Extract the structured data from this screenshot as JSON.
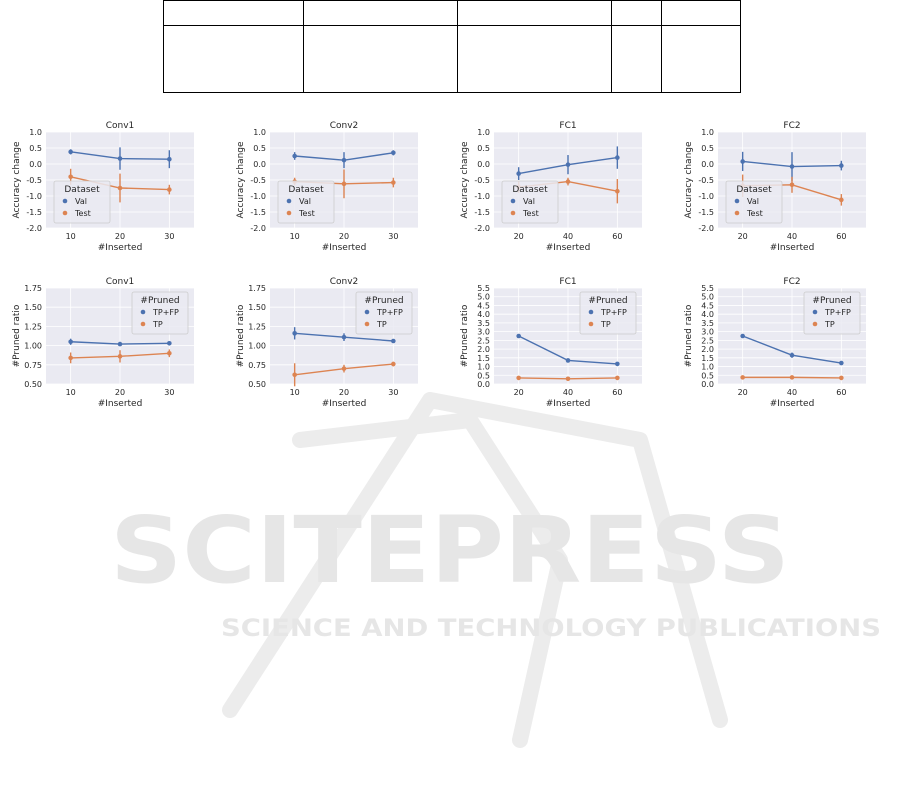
{
  "colors": {
    "series_0": "#4c72b0",
    "series_1": "#dd8452",
    "panel_bg": "#eaeaf2",
    "grid": "#ffffff"
  },
  "watermark": {
    "brand": "SCITEPRESS",
    "tagline": "SCIENCE AND TECHNOLOGY PUBLICATIONS"
  },
  "chart_data": [
    {
      "type": "line",
      "title": "Conv1",
      "xlabel": "#Inserted",
      "ylabel": "Accuracy change",
      "x": [
        10,
        20,
        30
      ],
      "xlim": [
        5,
        35
      ],
      "ylim": [
        -2.0,
        1.0
      ],
      "yticks": [
        "-2.0",
        "-1.5",
        "-1.0",
        "-0.5",
        "0.0",
        "0.5",
        "1.0"
      ],
      "legend": {
        "title": "Dataset",
        "position": "lower-left"
      },
      "series": [
        {
          "name": "Val",
          "values": [
            0.38,
            0.17,
            0.15
          ],
          "err": [
            0.08,
            0.35,
            0.28
          ]
        },
        {
          "name": "Test",
          "values": [
            -0.4,
            -0.75,
            -0.8
          ],
          "err": [
            0.25,
            0.45,
            0.15
          ]
        }
      ]
    },
    {
      "type": "line",
      "title": "Conv2",
      "xlabel": "#Inserted",
      "ylabel": "Accuracy change",
      "x": [
        10,
        20,
        30
      ],
      "xlim": [
        5,
        35
      ],
      "ylim": [
        -2.0,
        1.0
      ],
      "yticks": [
        "-2.0",
        "-1.5",
        "-1.0",
        "-0.5",
        "0.0",
        "0.5",
        "1.0"
      ],
      "legend": {
        "title": "Dataset",
        "position": "lower-left"
      },
      "series": [
        {
          "name": "Val",
          "values": [
            0.25,
            0.12,
            0.35
          ],
          "err": [
            0.12,
            0.25,
            0.08
          ]
        },
        {
          "name": "Test",
          "values": [
            -0.55,
            -0.62,
            -0.58
          ],
          "err": [
            0.12,
            0.45,
            0.15
          ]
        }
      ]
    },
    {
      "type": "line",
      "title": "FC1",
      "xlabel": "#Inserted",
      "ylabel": "Accuracy change",
      "x": [
        20,
        40,
        60
      ],
      "xlim": [
        10,
        70
      ],
      "ylim": [
        -2.0,
        1.0
      ],
      "yticks": [
        "-2.0",
        "-1.5",
        "-1.0",
        "-0.5",
        "0.0",
        "0.5",
        "1.0"
      ],
      "legend": {
        "title": "Dataset",
        "position": "lower-left"
      },
      "series": [
        {
          "name": "Val",
          "values": [
            -0.3,
            -0.02,
            0.2
          ],
          "err": [
            0.2,
            0.3,
            0.35
          ]
        },
        {
          "name": "Test",
          "values": [
            -0.72,
            -0.55,
            -0.85
          ],
          "err": [
            0.18,
            0.12,
            0.38
          ]
        }
      ]
    },
    {
      "type": "line",
      "title": "FC2",
      "xlabel": "#Inserted",
      "ylabel": "Accuracy change",
      "x": [
        20,
        40,
        60
      ],
      "xlim": [
        10,
        70
      ],
      "ylim": [
        -2.0,
        1.0
      ],
      "yticks": [
        "-2.0",
        "-1.5",
        "-1.0",
        "-0.5",
        "0.0",
        "0.5",
        "1.0"
      ],
      "legend": {
        "title": "Dataset",
        "position": "lower-left"
      },
      "series": [
        {
          "name": "Val",
          "values": [
            0.08,
            -0.08,
            -0.05
          ],
          "err": [
            0.3,
            0.45,
            0.15
          ]
        },
        {
          "name": "Test",
          "values": [
            -0.68,
            -0.65,
            -1.12
          ],
          "err": [
            0.35,
            0.25,
            0.18
          ]
        }
      ]
    },
    {
      "type": "line",
      "title": "Conv1",
      "xlabel": "#Inserted",
      "ylabel": "#Pruned ratio",
      "x": [
        10,
        20,
        30
      ],
      "xlim": [
        5,
        35
      ],
      "ylim": [
        0.5,
        1.75
      ],
      "yticks": [
        "0.50",
        "0.75",
        "1.00",
        "1.25",
        "1.50",
        "1.75"
      ],
      "legend": {
        "title": "#Pruned",
        "position": "upper-right"
      },
      "series": [
        {
          "name": "TP+FP",
          "values": [
            1.05,
            1.02,
            1.03
          ],
          "err": [
            0.04,
            0.02,
            0.02
          ]
        },
        {
          "name": "TP",
          "values": [
            0.84,
            0.86,
            0.9
          ],
          "err": [
            0.07,
            0.08,
            0.05
          ]
        }
      ]
    },
    {
      "type": "line",
      "title": "Conv2",
      "xlabel": "#Inserted",
      "ylabel": "#Pruned ratio",
      "x": [
        10,
        20,
        30
      ],
      "xlim": [
        5,
        35
      ],
      "ylim": [
        0.5,
        1.75
      ],
      "yticks": [
        "0.50",
        "0.75",
        "1.00",
        "1.25",
        "1.50",
        "1.75"
      ],
      "legend": {
        "title": "#Pruned",
        "position": "upper-right"
      },
      "series": [
        {
          "name": "TP+FP",
          "values": [
            1.16,
            1.11,
            1.06
          ],
          "err": [
            0.08,
            0.05,
            0.02
          ]
        },
        {
          "name": "TP",
          "values": [
            0.62,
            0.7,
            0.76
          ],
          "err": [
            0.15,
            0.05,
            0.03
          ]
        }
      ]
    },
    {
      "type": "line",
      "title": "FC1",
      "xlabel": "#Inserted",
      "ylabel": "#Pruned ratio",
      "x": [
        20,
        40,
        60
      ],
      "xlim": [
        10,
        70
      ],
      "ylim": [
        0.0,
        5.5
      ],
      "yticks": [
        "0.0",
        "0.5",
        "1.0",
        "1.5",
        "2.0",
        "2.5",
        "3.0",
        "3.5",
        "4.0",
        "4.5",
        "5.0",
        "5.5"
      ],
      "legend": {
        "title": "#Pruned",
        "position": "upper-right"
      },
      "series": [
        {
          "name": "TP+FP",
          "values": [
            2.75,
            1.35,
            1.15
          ],
          "err": [
            0.05,
            0.08,
            0.06
          ]
        },
        {
          "name": "TP",
          "values": [
            0.35,
            0.3,
            0.35
          ],
          "err": [
            0.03,
            0.03,
            0.03
          ]
        }
      ]
    },
    {
      "type": "line",
      "title": "FC2",
      "xlabel": "#Inserted",
      "ylabel": "#Pruned ratio",
      "x": [
        20,
        40,
        60
      ],
      "xlim": [
        10,
        70
      ],
      "ylim": [
        0.0,
        5.5
      ],
      "yticks": [
        "0.0",
        "0.5",
        "1.0",
        "1.5",
        "2.0",
        "2.5",
        "3.0",
        "3.5",
        "4.0",
        "4.5",
        "5.0",
        "5.5"
      ],
      "legend": {
        "title": "#Pruned",
        "position": "upper-right"
      },
      "series": [
        {
          "name": "TP+FP",
          "values": [
            2.75,
            1.65,
            1.2
          ],
          "err": [
            0.08,
            0.15,
            0.06
          ]
        },
        {
          "name": "TP",
          "values": [
            0.38,
            0.38,
            0.35
          ],
          "err": [
            0.03,
            0.03,
            0.03
          ]
        }
      ]
    }
  ]
}
